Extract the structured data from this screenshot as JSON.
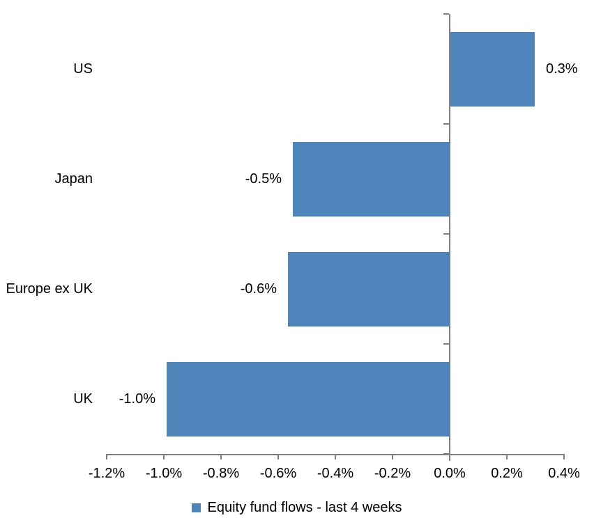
{
  "chart_data": {
    "type": "bar",
    "orientation": "horizontal",
    "categories": [
      "US",
      "Japan",
      "Europe ex UK",
      "UK"
    ],
    "values": [
      0.3,
      -0.5,
      -0.6,
      -1.0
    ],
    "value_labels": [
      "0.3%",
      "-0.5%",
      "-0.6%",
      "-1.0%"
    ],
    "plot_values": [
      0.295,
      -0.548,
      -0.565,
      -0.99
    ],
    "series_name": "Equity fund flows - last 4 weeks",
    "x_axis": {
      "tick_labels": [
        "-1.2%",
        "-1.0%",
        "-0.8%",
        "-0.6%",
        "-0.4%",
        "-0.2%",
        "0.0%",
        "0.2%",
        "0.4%"
      ],
      "tick_values": [
        -1.2,
        -1.0,
        -0.8,
        -0.6,
        -0.4,
        -0.2,
        0,
        0.2,
        0.4
      ],
      "min": -1.2,
      "max": 0.4
    },
    "legend_position": "bottom",
    "grid": false,
    "colors": {
      "bar": "#4E86BC",
      "axis": "#7F7F7F",
      "text": "#000000",
      "background": "#FFFFFF"
    }
  }
}
